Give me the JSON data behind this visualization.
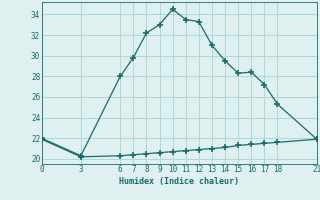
{
  "xlabel": "Humidex (Indice chaleur)",
  "ylabel": "",
  "bg_color": "#dff0f0",
  "grid_color": "#b0d8d8",
  "line_color": "#1a6b6b",
  "xlim": [
    0,
    21
  ],
  "ylim": [
    19.5,
    35.2
  ],
  "yticks": [
    20,
    22,
    24,
    26,
    28,
    30,
    32,
    34
  ],
  "xticks": [
    0,
    3,
    6,
    7,
    8,
    9,
    10,
    11,
    12,
    13,
    14,
    15,
    16,
    17,
    18,
    21
  ],
  "upper_x": [
    0,
    3,
    6,
    7,
    8,
    9,
    10,
    11,
    12,
    13,
    14,
    15,
    16,
    17,
    18,
    21
  ],
  "upper_y": [
    22.0,
    20.3,
    28.0,
    29.8,
    32.2,
    33.0,
    34.5,
    33.5,
    33.3,
    31.0,
    29.5,
    28.3,
    28.4,
    27.2,
    25.3,
    21.9
  ],
  "lower_x": [
    0,
    3,
    6,
    7,
    8,
    9,
    10,
    11,
    12,
    13,
    14,
    15,
    16,
    17,
    18,
    21
  ],
  "lower_y": [
    21.9,
    20.2,
    20.3,
    20.4,
    20.5,
    20.6,
    20.7,
    20.8,
    20.9,
    21.0,
    21.1,
    21.3,
    21.4,
    21.5,
    21.6,
    21.9
  ]
}
